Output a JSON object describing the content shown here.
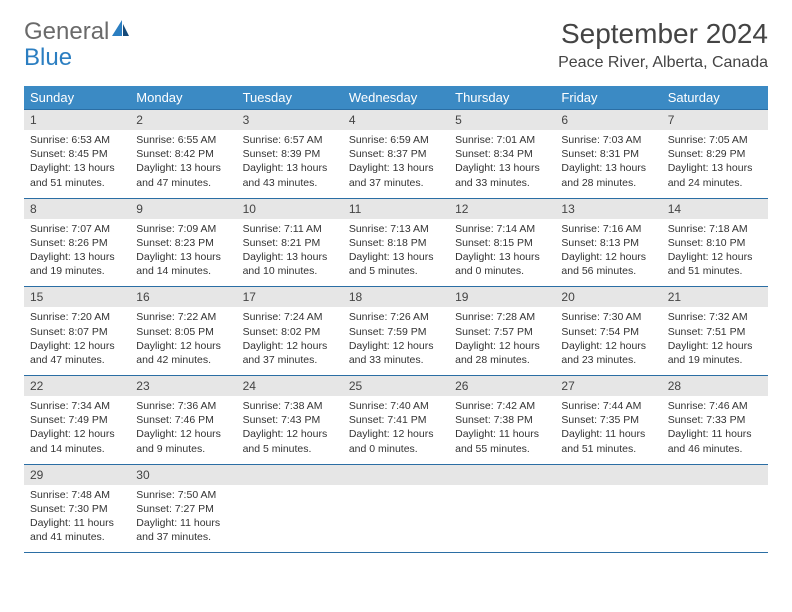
{
  "logo": {
    "text1": "General",
    "text2": "Blue"
  },
  "title": "September 2024",
  "location": "Peace River, Alberta, Canada",
  "colors": {
    "header_bg": "#3b8ac4",
    "header_text": "#ffffff",
    "daynum_bg": "#e6e6e6",
    "border": "#2b6ea4",
    "logo_general": "#6a6a6a",
    "logo_blue": "#2b7ec1"
  },
  "weekdays": [
    "Sunday",
    "Monday",
    "Tuesday",
    "Wednesday",
    "Thursday",
    "Friday",
    "Saturday"
  ],
  "days": [
    {
      "n": "1",
      "sr": "6:53 AM",
      "ss": "8:45 PM",
      "dl": "13 hours and 51 minutes."
    },
    {
      "n": "2",
      "sr": "6:55 AM",
      "ss": "8:42 PM",
      "dl": "13 hours and 47 minutes."
    },
    {
      "n": "3",
      "sr": "6:57 AM",
      "ss": "8:39 PM",
      "dl": "13 hours and 43 minutes."
    },
    {
      "n": "4",
      "sr": "6:59 AM",
      "ss": "8:37 PM",
      "dl": "13 hours and 37 minutes."
    },
    {
      "n": "5",
      "sr": "7:01 AM",
      "ss": "8:34 PM",
      "dl": "13 hours and 33 minutes."
    },
    {
      "n": "6",
      "sr": "7:03 AM",
      "ss": "8:31 PM",
      "dl": "13 hours and 28 minutes."
    },
    {
      "n": "7",
      "sr": "7:05 AM",
      "ss": "8:29 PM",
      "dl": "13 hours and 24 minutes."
    },
    {
      "n": "8",
      "sr": "7:07 AM",
      "ss": "8:26 PM",
      "dl": "13 hours and 19 minutes."
    },
    {
      "n": "9",
      "sr": "7:09 AM",
      "ss": "8:23 PM",
      "dl": "13 hours and 14 minutes."
    },
    {
      "n": "10",
      "sr": "7:11 AM",
      "ss": "8:21 PM",
      "dl": "13 hours and 10 minutes."
    },
    {
      "n": "11",
      "sr": "7:13 AM",
      "ss": "8:18 PM",
      "dl": "13 hours and 5 minutes."
    },
    {
      "n": "12",
      "sr": "7:14 AM",
      "ss": "8:15 PM",
      "dl": "13 hours and 0 minutes."
    },
    {
      "n": "13",
      "sr": "7:16 AM",
      "ss": "8:13 PM",
      "dl": "12 hours and 56 minutes."
    },
    {
      "n": "14",
      "sr": "7:18 AM",
      "ss": "8:10 PM",
      "dl": "12 hours and 51 minutes."
    },
    {
      "n": "15",
      "sr": "7:20 AM",
      "ss": "8:07 PM",
      "dl": "12 hours and 47 minutes."
    },
    {
      "n": "16",
      "sr": "7:22 AM",
      "ss": "8:05 PM",
      "dl": "12 hours and 42 minutes."
    },
    {
      "n": "17",
      "sr": "7:24 AM",
      "ss": "8:02 PM",
      "dl": "12 hours and 37 minutes."
    },
    {
      "n": "18",
      "sr": "7:26 AM",
      "ss": "7:59 PM",
      "dl": "12 hours and 33 minutes."
    },
    {
      "n": "19",
      "sr": "7:28 AM",
      "ss": "7:57 PM",
      "dl": "12 hours and 28 minutes."
    },
    {
      "n": "20",
      "sr": "7:30 AM",
      "ss": "7:54 PM",
      "dl": "12 hours and 23 minutes."
    },
    {
      "n": "21",
      "sr": "7:32 AM",
      "ss": "7:51 PM",
      "dl": "12 hours and 19 minutes."
    },
    {
      "n": "22",
      "sr": "7:34 AM",
      "ss": "7:49 PM",
      "dl": "12 hours and 14 minutes."
    },
    {
      "n": "23",
      "sr": "7:36 AM",
      "ss": "7:46 PM",
      "dl": "12 hours and 9 minutes."
    },
    {
      "n": "24",
      "sr": "7:38 AM",
      "ss": "7:43 PM",
      "dl": "12 hours and 5 minutes."
    },
    {
      "n": "25",
      "sr": "7:40 AM",
      "ss": "7:41 PM",
      "dl": "12 hours and 0 minutes."
    },
    {
      "n": "26",
      "sr": "7:42 AM",
      "ss": "7:38 PM",
      "dl": "11 hours and 55 minutes."
    },
    {
      "n": "27",
      "sr": "7:44 AM",
      "ss": "7:35 PM",
      "dl": "11 hours and 51 minutes."
    },
    {
      "n": "28",
      "sr": "7:46 AM",
      "ss": "7:33 PM",
      "dl": "11 hours and 46 minutes."
    },
    {
      "n": "29",
      "sr": "7:48 AM",
      "ss": "7:30 PM",
      "dl": "11 hours and 41 minutes."
    },
    {
      "n": "30",
      "sr": "7:50 AM",
      "ss": "7:27 PM",
      "dl": "11 hours and 37 minutes."
    }
  ],
  "labels": {
    "sunrise": "Sunrise: ",
    "sunset": "Sunset: ",
    "daylight": "Daylight: "
  }
}
